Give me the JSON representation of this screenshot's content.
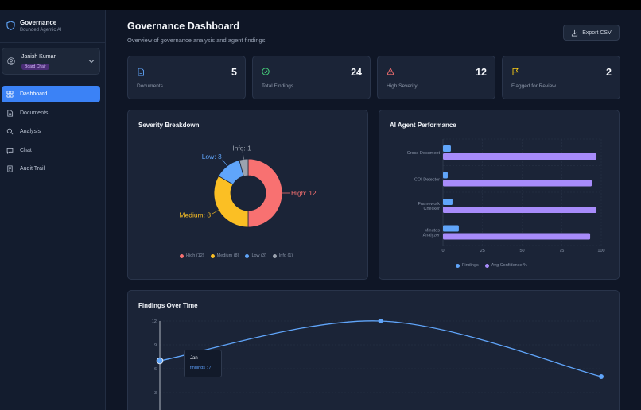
{
  "app": {
    "title": "Governance",
    "subtitle": "Bounded Agentic AI"
  },
  "user": {
    "name": "Janish Kumar",
    "role": "Board Chair"
  },
  "nav": [
    {
      "label": "Dashboard",
      "icon": "dashboard-icon",
      "active": true
    },
    {
      "label": "Documents",
      "icon": "document-icon"
    },
    {
      "label": "Analysis",
      "icon": "search-icon"
    },
    {
      "label": "Chat",
      "icon": "chat-icon"
    },
    {
      "label": "Audit Trail",
      "icon": "audit-trail-icon"
    }
  ],
  "header": {
    "title": "Governance Dashboard",
    "subtitle": "Overview of governance analysis and agent findings",
    "export_label": "Export CSV"
  },
  "stats": [
    {
      "label": "Documents",
      "value": "5",
      "icon": "document-icon",
      "color": "#60a5fa"
    },
    {
      "label": "Total Findings",
      "value": "24",
      "icon": "check-circle-icon",
      "color": "#4ade80"
    },
    {
      "label": "High Severity",
      "value": "12",
      "icon": "warning-triangle-icon",
      "color": "#f87171"
    },
    {
      "label": "Flagged for Review",
      "value": "2",
      "icon": "flag-icon",
      "color": "#facc15"
    }
  ],
  "severity_panel": {
    "title": "Severity Breakdown"
  },
  "agent_panel": {
    "title": "AI Agent Performance"
  },
  "time_panel": {
    "title": "Findings Over Time"
  },
  "colors": {
    "accent": "#3b82f6",
    "high": "#f87171",
    "medium": "#fbbf24",
    "low": "#60a5fa",
    "info": "#9ca3af",
    "confidence": "#a78bfa"
  },
  "chart_data": [
    {
      "type": "pie",
      "title": "Severity Breakdown",
      "slices": [
        {
          "name": "High",
          "value": 12,
          "label": "High: 12",
          "legend": "High (12)",
          "color": "#f87171"
        },
        {
          "name": "Medium",
          "value": 8,
          "label": "Medium: 8",
          "legend": "Medium (8)",
          "color": "#fbbf24"
        },
        {
          "name": "Low",
          "value": 3,
          "label": "Low: 3",
          "legend": "Low (3)",
          "color": "#60a5fa"
        },
        {
          "name": "Info",
          "value": 1,
          "label": "Info: 1",
          "legend": "Info (1)",
          "color": "#9ca3af"
        }
      ],
      "legend_placement": "bottom"
    },
    {
      "type": "bar",
      "orientation": "horizontal",
      "title": "AI Agent Performance",
      "categories": [
        [
          "Cross-Document"
        ],
        [
          "COI Detector"
        ],
        [
          "Framework",
          "Checker"
        ],
        [
          "Minutes",
          "Analyzer"
        ]
      ],
      "series": [
        {
          "name": "Findings",
          "values": [
            5,
            3,
            6,
            10
          ],
          "color": "#60a5fa"
        },
        {
          "name": "Avg Confidence %",
          "values": [
            97,
            94,
            97,
            93
          ],
          "color": "#a78bfa"
        }
      ],
      "xlim": [
        0,
        100
      ],
      "xticks": [
        "0",
        "25",
        "50",
        "75",
        "100"
      ],
      "grid": true,
      "legend_placement": "bottom"
    },
    {
      "type": "line",
      "title": "Findings Over Time",
      "x": [
        "Jan",
        "",
        ""
      ],
      "y": [
        7,
        12,
        5
      ],
      "ylim": [
        0,
        12
      ],
      "yticks": [
        "3",
        "6",
        "9",
        "12"
      ],
      "grid": true,
      "tooltip": {
        "title": "Jan",
        "text": "findings : 7"
      },
      "color": "#60a5fa"
    }
  ]
}
